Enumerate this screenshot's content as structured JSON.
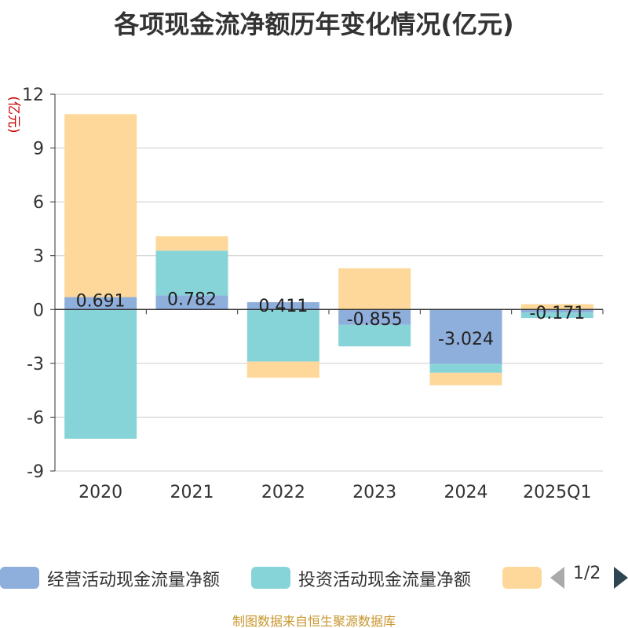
{
  "chart_data": {
    "type": "bar",
    "stacked": true,
    "title": "各项现金流净额历年变化情况(亿元)",
    "ylabel": "(亿元)",
    "xlabel": "",
    "categories": [
      "2020",
      "2021",
      "2022",
      "2023",
      "2024",
      "2025Q1"
    ],
    "ylim": [
      -9,
      12
    ],
    "yticks": [
      "12",
      "9",
      "6",
      "3",
      "0",
      "-3",
      "-6",
      "-9"
    ],
    "grid": true,
    "series": [
      {
        "name": "经营活动现金流量净额",
        "color": "#8eaedb",
        "values": [
          0.691,
          0.782,
          0.411,
          -0.855,
          -3.024,
          -0.171
        ],
        "labels": [
          "0.691",
          "0.782",
          "0.411",
          "-0.855",
          "-3.024",
          "-0.171"
        ]
      },
      {
        "name": "投资活动现金流量净额",
        "color": "#87d4d8",
        "values": [
          -7.2,
          2.5,
          -2.9,
          -1.2,
          -0.5,
          -0.3
        ]
      },
      {
        "name": "",
        "color": "#fdd89a",
        "values": [
          10.2,
          0.8,
          -0.9,
          2.3,
          -0.7,
          0.3
        ]
      }
    ]
  },
  "legend": {
    "items": [
      {
        "label": "经营活动现金流量净额",
        "color": "#8eaedb"
      },
      {
        "label": "投资活动现金流量净额",
        "color": "#87d4d8"
      },
      {
        "label": "",
        "color": "#fdd89a"
      }
    ],
    "page": "1/2"
  },
  "source": "制图数据来自恒生聚源数据库"
}
